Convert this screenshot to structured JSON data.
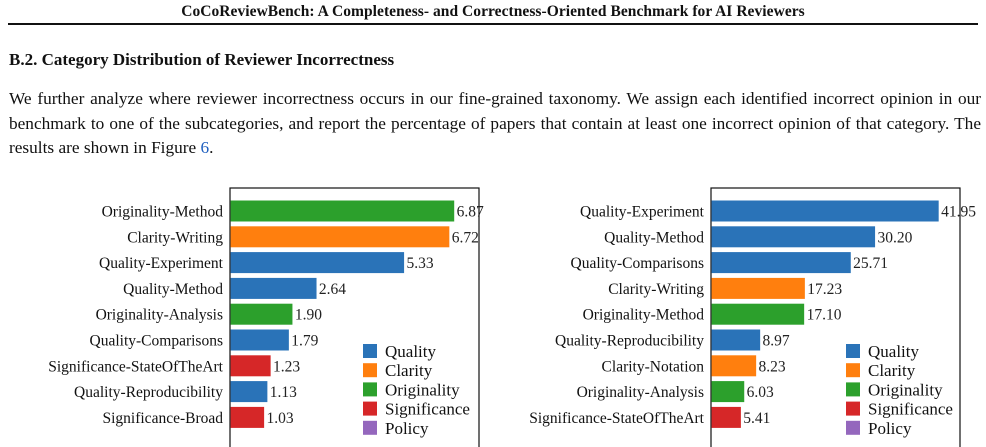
{
  "page": {
    "running_header": "CoCoReviewBench: A Completeness- and Correctness-Oriented Benchmark for AI Reviewers",
    "section_heading": "B.2. Category Distribution of Reviewer Incorrectness",
    "paragraph_before_ref": "We further analyze where reviewer incorrectness occurs in our fine-grained taxonomy. We assign each identified incorrect opinion in our benchmark to one of the subcategories, and report the percentage of papers that contain at least one incorrect opinion of that category. The results are shown in Figure ",
    "figure_ref": "6",
    "paragraph_after_ref": "."
  },
  "colors": {
    "Quality": "#2a73b8",
    "Clarity": "#ff7f0e",
    "Originality": "#2ca02c",
    "Significance": "#d62728",
    "Policy": "#9467bd"
  },
  "chart_data": [
    {
      "type": "bar",
      "orientation": "horizontal",
      "title": "",
      "xlabel": "",
      "ylabel": "",
      "xlim": [
        0,
        7.65
      ],
      "categories": [
        "Originality-Method",
        "Clarity-Writing",
        "Quality-Experiment",
        "Quality-Method",
        "Originality-Analysis",
        "Quality-Comparisons",
        "Significance-StateOfTheArt",
        "Quality-Reproducibility",
        "Significance-Broad"
      ],
      "values": [
        6.87,
        6.72,
        5.33,
        2.64,
        1.9,
        1.79,
        1.23,
        1.13,
        1.03
      ],
      "value_labels": [
        "6.87",
        "6.72",
        "5.33",
        "2.64",
        "1.90",
        "1.79",
        "1.23",
        "1.13",
        "1.03"
      ],
      "groups": [
        "Originality",
        "Clarity",
        "Quality",
        "Quality",
        "Originality",
        "Quality",
        "Significance",
        "Quality",
        "Significance"
      ],
      "legend": {
        "position": "lower-right",
        "entries": [
          "Quality",
          "Clarity",
          "Originality",
          "Significance",
          "Policy"
        ]
      },
      "grid": false
    },
    {
      "type": "bar",
      "orientation": "horizontal",
      "title": "",
      "xlabel": "",
      "ylabel": "",
      "xlim": [
        0,
        46.0
      ],
      "categories": [
        "Quality-Experiment",
        "Quality-Method",
        "Quality-Comparisons",
        "Clarity-Writing",
        "Originality-Method",
        "Quality-Reproducibility",
        "Clarity-Notation",
        "Originality-Analysis",
        "Significance-StateOfTheArt"
      ],
      "values": [
        41.95,
        30.2,
        25.71,
        17.23,
        17.1,
        8.97,
        8.23,
        6.03,
        5.41
      ],
      "value_labels": [
        "41.95",
        "30.20",
        "25.71",
        "17.23",
        "17.10",
        "8.97",
        "8.23",
        "6.03",
        "5.41"
      ],
      "groups": [
        "Quality",
        "Quality",
        "Quality",
        "Clarity",
        "Originality",
        "Quality",
        "Clarity",
        "Originality",
        "Significance"
      ],
      "legend": {
        "position": "lower-right",
        "entries": [
          "Quality",
          "Clarity",
          "Originality",
          "Significance",
          "Policy"
        ]
      },
      "grid": false
    }
  ]
}
